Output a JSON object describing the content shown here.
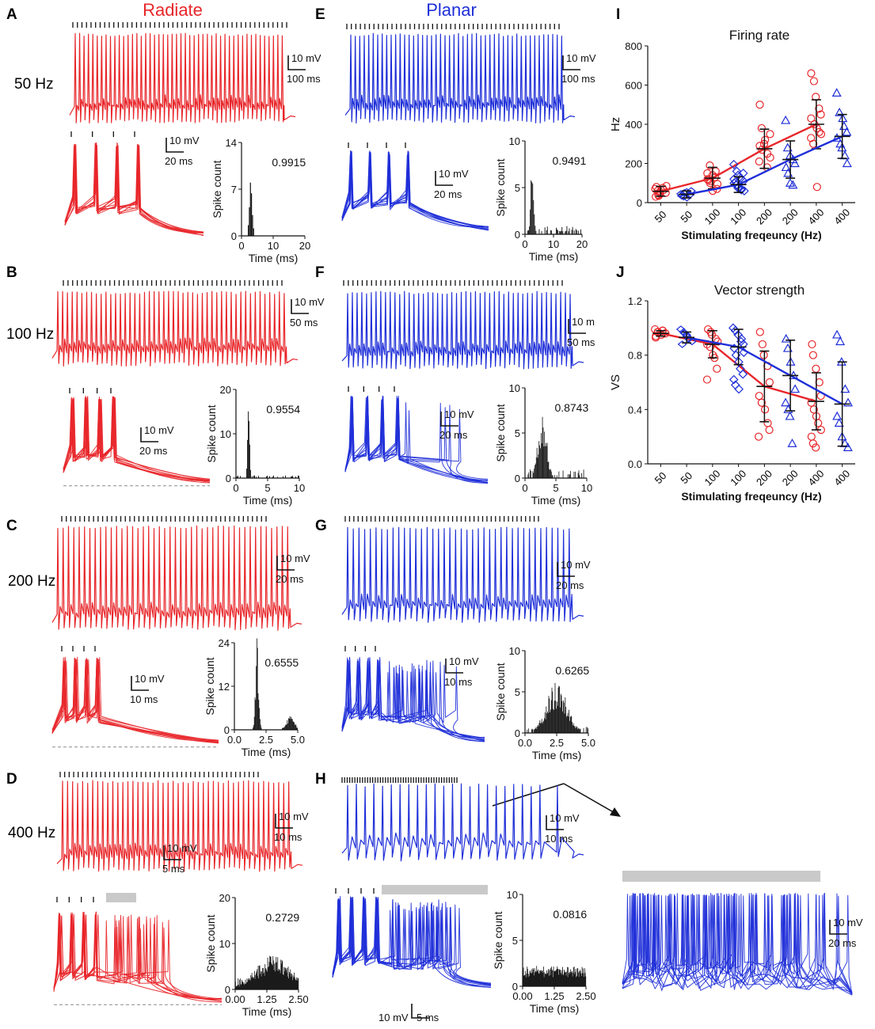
{
  "colors": {
    "radiate": "#e8262a",
    "planar": "#1f2fd8",
    "black": "#111111",
    "gray_bar": "#c9c9c9",
    "dash": "#8a8a8a"
  },
  "headers": {
    "radiate": "Radiate",
    "planar": "Planar"
  },
  "row_labels": [
    "50 Hz",
    "100 Hz",
    "200 Hz",
    "400 Hz"
  ],
  "panel_letters": {
    "A": "A",
    "B": "B",
    "C": "C",
    "D": "D",
    "E": "E",
    "F": "F",
    "G": "G",
    "H": "H",
    "I": "I",
    "J": "J"
  },
  "traces": {
    "A_top": {
      "spikes": 48,
      "color": "radiate",
      "ticks": 48
    },
    "A_bot": {
      "spikes": 4,
      "color": "radiate",
      "ticks": 4
    },
    "B_top": {
      "spikes": 48,
      "color": "radiate",
      "ticks": 48
    },
    "B_bot": {
      "spikes": 4,
      "color": "radiate",
      "ticks": 4
    },
    "C_top": {
      "spikes": 44,
      "color": "radiate",
      "ticks": 46
    },
    "C_bot": {
      "spikes": 4,
      "color": "radiate",
      "ticks": 4
    },
    "D_top": {
      "spikes": 46,
      "color": "radiate",
      "ticks": 45
    },
    "D_bot": {
      "spikes": 14,
      "color": "radiate",
      "ticks": 4
    },
    "E_top": {
      "spikes": 48,
      "color": "planar",
      "ticks": 48
    },
    "E_bot": {
      "spikes": 4,
      "color": "planar",
      "ticks": 4
    },
    "F_top": {
      "spikes": 48,
      "color": "planar",
      "ticks": 48
    },
    "F_bot": {
      "spikes": 6,
      "color": "planar",
      "ticks": 4
    },
    "G_top": {
      "spikes": 40,
      "color": "planar",
      "ticks": 46
    },
    "G_bot": {
      "spikes": 16,
      "color": "planar",
      "ticks": 4
    },
    "H_top": {
      "spikes": 26,
      "color": "planar",
      "ticks": 46
    },
    "H_bot": {
      "spikes": 22,
      "color": "planar",
      "ticks": 4
    },
    "H_zoom": {
      "spikes": 34,
      "color": "planar",
      "ticks": 0
    }
  },
  "scalebars": [
    {
      "id": "A1",
      "v": "10 mV",
      "h": "100 ms"
    },
    {
      "id": "A2",
      "v": "10 mV",
      "h": "20 ms"
    },
    {
      "id": "E1",
      "v": "10 mV",
      "h": "100 ms"
    },
    {
      "id": "E2",
      "v": "10 mV",
      "h": "20 ms"
    },
    {
      "id": "B1",
      "v": "10 mV",
      "h": "50 ms"
    },
    {
      "id": "B2",
      "v": "10 mV",
      "h": "20 ms"
    },
    {
      "id": "F1",
      "v": "10 m",
      "h": "50 ms"
    },
    {
      "id": "F2",
      "v": "10 mV",
      "h": "20 ms"
    },
    {
      "id": "C1",
      "v": "10 mV",
      "h": "20 ms"
    },
    {
      "id": "C2",
      "v": "10 mV",
      "h": "10 ms"
    },
    {
      "id": "G1",
      "v": "10 mV",
      "h": "20 ms"
    },
    {
      "id": "G2",
      "v": "10 mV",
      "h": "10 ms"
    },
    {
      "id": "D1",
      "v": "10 mV",
      "h": "10 ms"
    },
    {
      "id": "D2",
      "v": "10 mV",
      "h": "5 ms"
    },
    {
      "id": "H1",
      "v": "10 mV",
      "h": "10 ms"
    },
    {
      "id": "H2",
      "v": "10 mV",
      "h": "5 ms"
    },
    {
      "id": "Z",
      "v": "10 mV",
      "h": "20 ms"
    }
  ],
  "chart_data": [
    {
      "id": "A",
      "type": "bar",
      "title": "0.9915",
      "xlabel": "Time (ms)",
      "ylabel": "Spike count",
      "xlim": [
        0,
        20
      ],
      "ylim": [
        0,
        14
      ],
      "xticks": [
        "0",
        "10",
        "20"
      ],
      "yticks": [
        "0",
        "7",
        "14"
      ],
      "hist": {
        "center": 3.0,
        "sd": 0.4,
        "peak": 11.5,
        "tail": 0.0,
        "bins": 60
      }
    },
    {
      "id": "E",
      "type": "bar",
      "title": "0.9491",
      "xlabel": "Time (ms)",
      "ylabel": "Spike count",
      "xlim": [
        0,
        20
      ],
      "ylim": [
        0,
        10
      ],
      "xticks": [
        "0",
        "10",
        "20"
      ],
      "yticks": [
        "0",
        "5",
        "10"
      ],
      "hist": {
        "center": 2.6,
        "sd": 0.5,
        "peak": 7.5,
        "tail": 0.9,
        "bins": 70
      }
    },
    {
      "id": "B",
      "type": "bar",
      "title": "0.9554",
      "xlabel": "Time (ms)",
      "ylabel": "Spike count",
      "xlim": [
        0,
        10
      ],
      "ylim": [
        0,
        20
      ],
      "xticks": [
        "0",
        "5",
        "10"
      ],
      "yticks": [
        "0",
        "10",
        "20"
      ],
      "hist": {
        "center": 2.0,
        "sd": 0.15,
        "peak": 17,
        "tail": 0.6,
        "bins": 80
      }
    },
    {
      "id": "F",
      "type": "bar",
      "title": "0.8743",
      "xlabel": "Time (ms)",
      "ylabel": "Spike count",
      "xlim": [
        0,
        10
      ],
      "ylim": [
        0,
        10
      ],
      "xticks": [
        "0",
        "5",
        "10"
      ],
      "yticks": [
        "0",
        "5",
        "10"
      ],
      "hist": {
        "center": 2.8,
        "sd": 0.7,
        "peak": 6.5,
        "tail": 1.0,
        "bins": 90
      }
    },
    {
      "id": "C",
      "type": "bar",
      "title": "0.6555",
      "xlabel": "Time (ms)",
      "ylabel": "Spike count",
      "xlim": [
        0,
        5
      ],
      "ylim": [
        0,
        24
      ],
      "xticks": [
        "0.0",
        "2.5",
        "5.0"
      ],
      "yticks": [
        "0",
        "12",
        "24"
      ],
      "hist": {
        "center": 1.8,
        "sd": 0.12,
        "peak": 22,
        "tail": 0.0,
        "second": {
          "center": 4.4,
          "sd": 0.3,
          "peak": 3.5
        },
        "bins": 100
      }
    },
    {
      "id": "G",
      "type": "bar",
      "title": "0.6265",
      "xlabel": "Time (ms)",
      "ylabel": "Spike count",
      "xlim": [
        0,
        5
      ],
      "ylim": [
        0,
        10
      ],
      "xticks": [
        "0.0",
        "2.5",
        "5.0"
      ],
      "yticks": [
        "0",
        "5",
        "10"
      ],
      "hist": {
        "center": 2.5,
        "sd": 0.8,
        "peak": 5.0,
        "tail": 0.8,
        "bins": 100
      }
    },
    {
      "id": "D",
      "type": "bar",
      "title": "0.2729",
      "xlabel": "Time (ms)",
      "ylabel": "Spike count",
      "xlim": [
        0,
        2.5
      ],
      "ylim": [
        0,
        20
      ],
      "xticks": [
        "0.00",
        "1.25",
        "2.50"
      ],
      "yticks": [
        "0",
        "10",
        "20"
      ],
      "hist": {
        "center": 1.5,
        "sd": 0.7,
        "peak": 6.0,
        "tail": 2.5,
        "bins": 120
      }
    },
    {
      "id": "H",
      "type": "bar",
      "title": "0.0816",
      "xlabel": "Time (ms)",
      "ylabel": "Spike count",
      "xlim": [
        0,
        2.5
      ],
      "ylim": [
        0,
        10
      ],
      "xticks": [
        "0.00",
        "1.25",
        "2.50"
      ],
      "yticks": [
        "0",
        "5",
        "10"
      ],
      "hist": {
        "center": 1.3,
        "sd": 5,
        "peak": 1.8,
        "tail": 1.8,
        "bins": 120
      }
    },
    {
      "id": "I",
      "type": "scatter",
      "title": "Firing rate",
      "xlabel": "Stimulating freqeuncy (Hz)",
      "ylabel": "Hz",
      "categories": [
        "50",
        "50",
        "100",
        "100",
        "200",
        "200",
        "400",
        "400"
      ],
      "ylim": [
        0,
        800
      ],
      "yticks": [
        "0",
        "200",
        "400",
        "600",
        "800"
      ],
      "series": [
        {
          "name": "Radiate",
          "color": "radiate",
          "marker": "circle",
          "cats": [
            0,
            2,
            4,
            6
          ],
          "mean": [
            58,
            125,
            275,
            400
          ],
          "sd": [
            25,
            55,
            100,
            125
          ],
          "points": [
            [
              70,
              40,
              55,
              75,
              85,
              30,
              60,
              45,
              65,
              50,
              80,
              35
            ],
            [
              115,
              100,
              140,
              160,
              70,
              120,
              190,
              60,
              130,
              95,
              150,
              110
            ],
            [
              500,
              380,
              300,
              250,
              230,
              210,
              270,
              320,
              180,
              350,
              290
            ],
            [
              660,
              620,
              540,
              480,
              450,
              430,
              400,
              380,
              360,
              350,
              330,
              300,
              80
            ]
          ]
        },
        {
          "name": "Planar",
          "color": "planar",
          "marker": "",
          "cats": [
            1,
            3,
            5,
            7
          ],
          "mean": [
            42,
            92,
            220,
            338
          ],
          "sd": [
            18,
            40,
            95,
            112
          ],
          "points": [
            [
              45,
              30,
              55,
              40,
              60,
              35,
              50,
              25
            ],
            [
              195,
              160,
              140,
              125,
              110,
              100,
              90,
              80,
              70,
              60,
              120,
              105,
              75,
              65,
              150
            ],
            [
              420,
              280,
              240,
              220,
              200,
              180,
              150,
              100,
              90
            ],
            [
              560,
              460,
              430,
              390,
              360,
              330,
              300,
              280,
              240,
              200
            ]
          ]
        }
      ]
    },
    {
      "id": "J",
      "type": "scatter",
      "title": "Vector strength",
      "xlabel": "Stimulating freqeuncy (Hz)",
      "ylabel": "VS",
      "categories": [
        "50",
        "50",
        "100",
        "100",
        "200",
        "200",
        "400",
        "400"
      ],
      "ylim": [
        0,
        1.2
      ],
      "yticks": [
        "0.0",
        "0.4",
        "0.8",
        "1.2"
      ],
      "series": [
        {
          "name": "Radiate",
          "color": "radiate",
          "marker": "circle",
          "cats": [
            0,
            2,
            4,
            6
          ],
          "mean": [
            0.96,
            0.88,
            0.57,
            0.46
          ],
          "sd": [
            0.02,
            0.1,
            0.26,
            0.21
          ],
          "points": [
            [
              0.99,
              0.97,
              0.95,
              0.98,
              0.96,
              0.94,
              0.97,
              0.95,
              0.98,
              0.96,
              0.93
            ],
            [
              0.99,
              0.97,
              0.95,
              0.92,
              0.9,
              0.88,
              0.86,
              0.8,
              0.78,
              0.7,
              0.62
            ],
            [
              0.97,
              0.88,
              0.8,
              0.72,
              0.6,
              0.5,
              0.45,
              0.4,
              0.3,
              0.25,
              0.2
            ],
            [
              0.88,
              0.8,
              0.7,
              0.6,
              0.5,
              0.45,
              0.4,
              0.35,
              0.3,
              0.25,
              0.2,
              0.15,
              0.12
            ]
          ]
        },
        {
          "name": "Planar",
          "color": "planar",
          "marker": "",
          "cats": [
            1,
            3,
            5,
            7
          ],
          "mean": [
            0.93,
            0.86,
            0.65,
            0.44
          ],
          "sd": [
            0.04,
            0.13,
            0.26,
            0.31
          ],
          "points": [
            [
              0.99,
              0.97,
              0.95,
              0.92,
              0.9,
              0.88,
              0.96,
              0.94
            ],
            [
              1.0,
              0.98,
              0.95,
              0.92,
              0.88,
              0.85,
              0.8,
              0.75,
              0.7,
              0.66,
              0.62,
              0.58,
              0.55,
              0.9,
              0.82
            ],
            [
              0.92,
              0.85,
              0.75,
              0.65,
              0.55,
              0.45,
              0.4,
              0.35,
              0.15
            ],
            [
              0.95,
              0.9,
              0.75,
              0.55,
              0.45,
              0.35,
              0.3,
              0.2,
              0.15,
              0.12
            ]
          ]
        }
      ]
    }
  ]
}
